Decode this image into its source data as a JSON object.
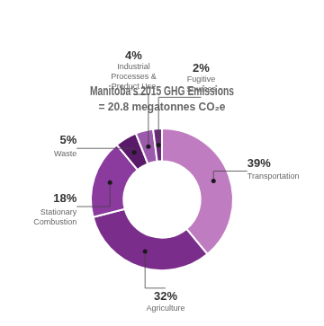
{
  "chart_data": {
    "type": "doughnut",
    "title": "Manitoba’s 2015 GHG Emissions",
    "subtitle": "= 20.8 megatonnes CO₂e",
    "categories": [
      "Transportation",
      "Agriculture",
      "Stationary\nCombustion",
      "Waste",
      "Industrial\nProcesses &\nProduct Use",
      "Fugitive\nSources"
    ],
    "values": [
      39,
      32,
      18,
      5,
      4,
      2
    ],
    "value_labels": [
      "39%",
      "32%",
      "18%",
      "5%",
      "4%",
      "2%"
    ],
    "colors": [
      "#c07cc0",
      "#7b2d8b",
      "#8b3a9e",
      "#5a1a6a",
      "#9b5aab",
      "#6a2a7a"
    ],
    "data_labels": true
  }
}
